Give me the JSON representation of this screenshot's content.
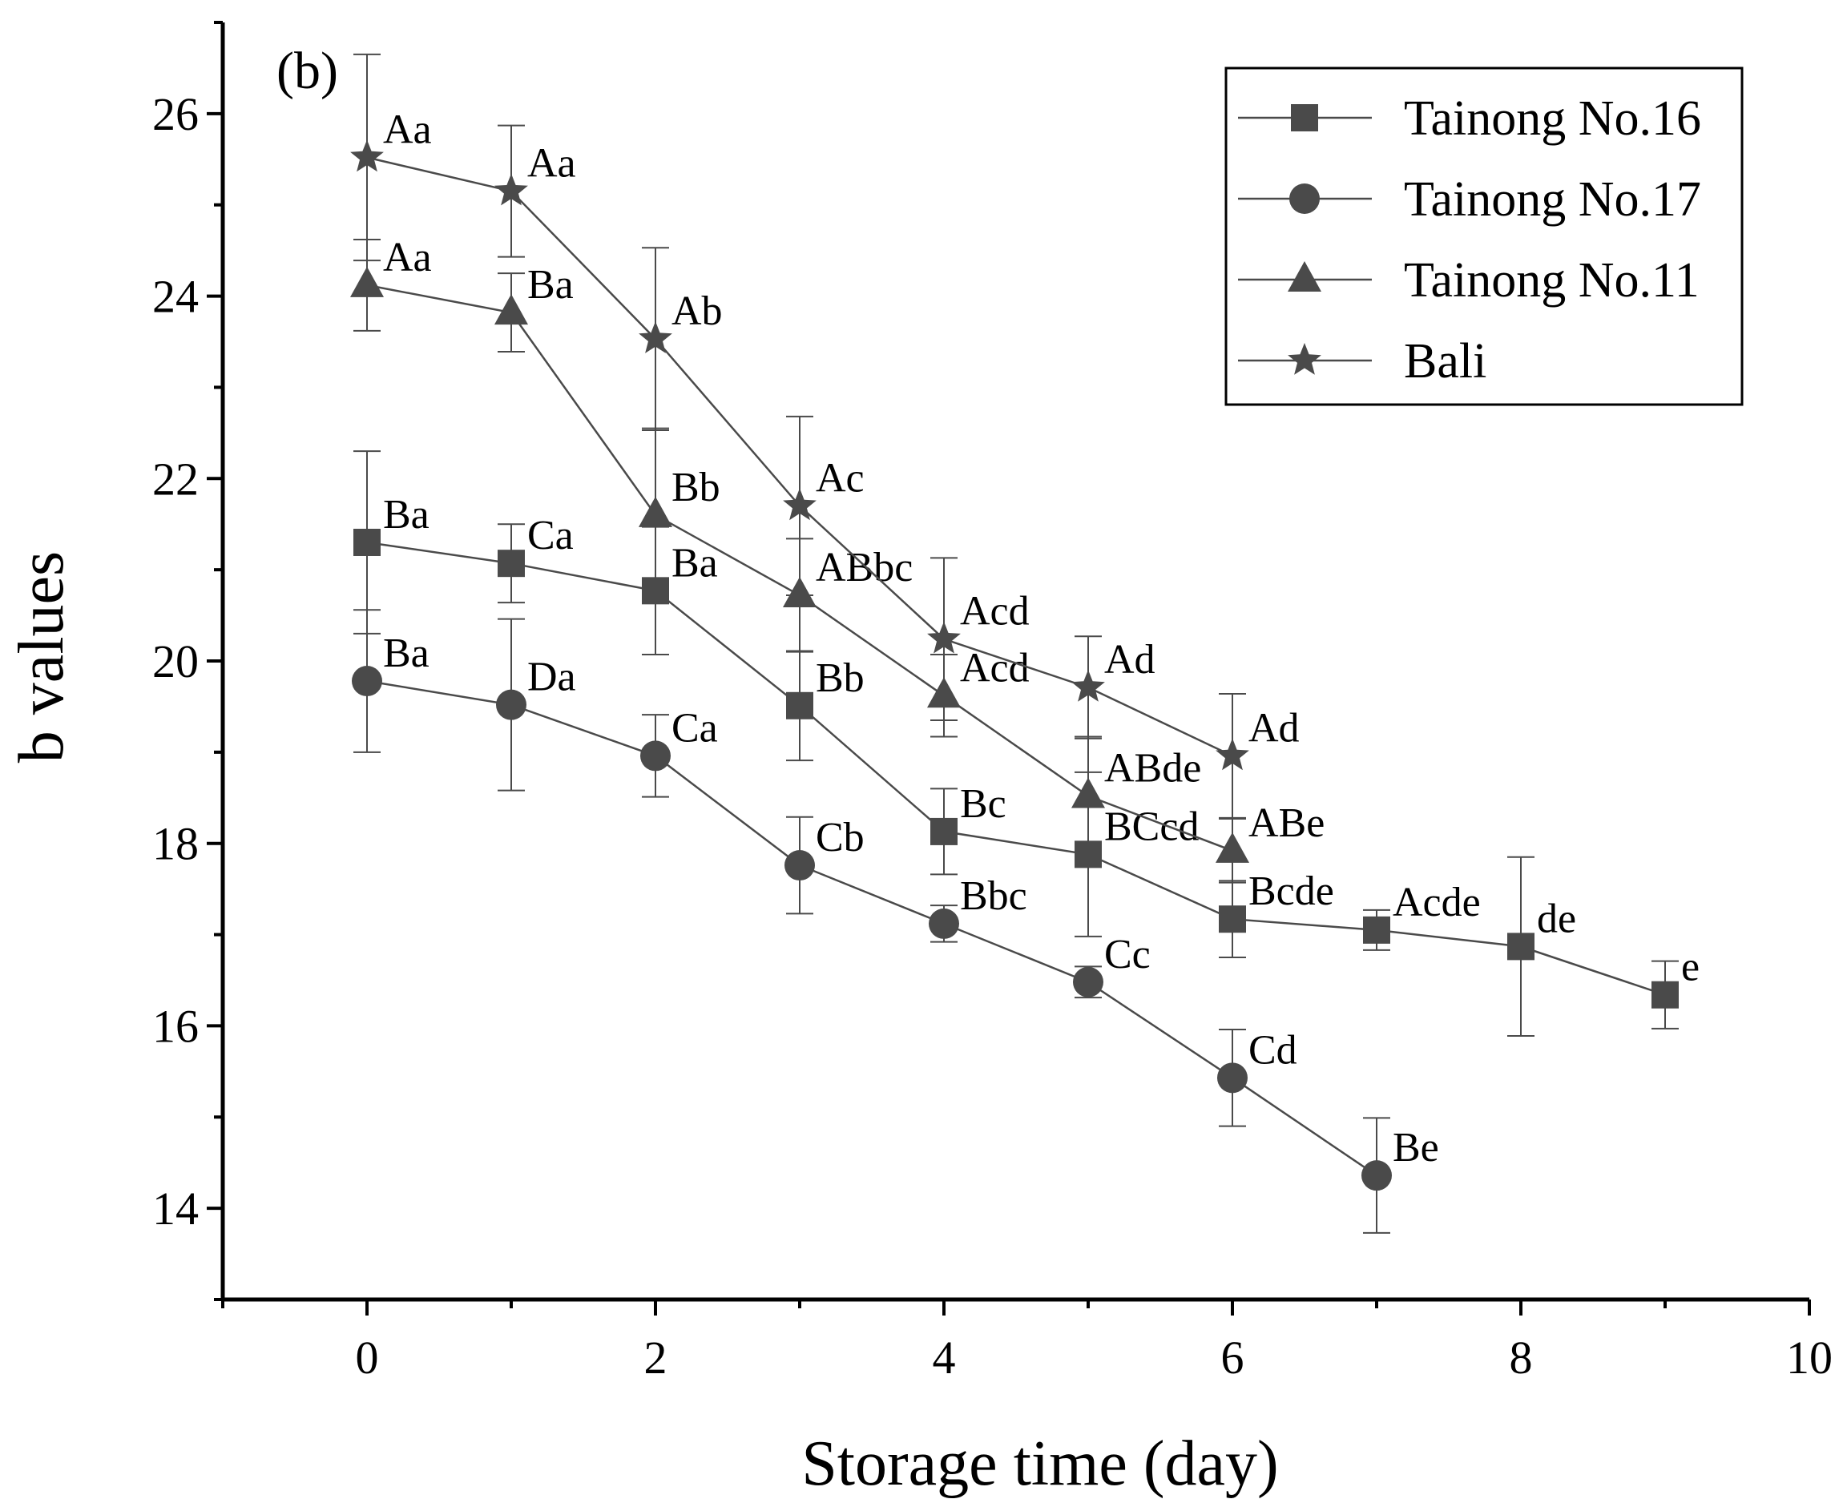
{
  "chart_data": {
    "type": "line",
    "panel_label": "(b)",
    "xlabel": "Storage time (day)",
    "ylabel": "b values",
    "xlim": [
      -1,
      10
    ],
    "ylim": [
      13,
      27
    ],
    "x_ticks": [
      0,
      2,
      4,
      6,
      8,
      10
    ],
    "y_ticks": [
      14,
      16,
      18,
      20,
      22,
      24,
      26
    ],
    "legend_position": "top-right",
    "grid": false,
    "colors": {
      "series": "#4a4a4a",
      "axis": "#000000"
    },
    "series": [
      {
        "name": "Tainong No.16",
        "marker": "square",
        "x": [
          0,
          1,
          2,
          3,
          4,
          5,
          6,
          7,
          8,
          9
        ],
        "values": [
          21.3,
          21.07,
          20.77,
          19.51,
          18.13,
          17.88,
          17.17,
          17.05,
          16.87,
          16.34
        ],
        "errors": [
          1.0,
          0.43,
          0.7,
          0.6,
          0.47,
          0.9,
          0.42,
          0.22,
          0.98,
          0.37
        ],
        "labels": [
          "Ba",
          "Ca",
          "Ba",
          "Bb",
          "Bc",
          "BCcd",
          "Bcde",
          "Acde",
          "de",
          "e"
        ]
      },
      {
        "name": "Tainong No.17",
        "marker": "circle",
        "x": [
          0,
          1,
          2,
          3,
          4,
          5,
          6,
          7
        ],
        "values": [
          19.78,
          19.52,
          18.96,
          17.76,
          17.12,
          16.48,
          15.43,
          14.36
        ],
        "errors": [
          0.78,
          0.94,
          0.45,
          0.53,
          0.2,
          0.17,
          0.53,
          0.63
        ],
        "labels": [
          "Ba",
          "Da",
          "Ca",
          "Cb",
          "Bbc",
          "Cc",
          "Cd",
          "Be"
        ]
      },
      {
        "name": "Tainong No.11",
        "marker": "triangle",
        "x": [
          0,
          1,
          2,
          3,
          4,
          5,
          6
        ],
        "values": [
          24.12,
          23.82,
          21.6,
          20.72,
          19.62,
          18.52,
          17.92
        ],
        "errors": [
          0.5,
          0.43,
          0.95,
          0.62,
          0.45,
          0.65,
          0.35
        ],
        "labels": [
          "Aa",
          "Ba",
          "Bb",
          "ABbc",
          "Acd",
          "ABde",
          "ABe"
        ]
      },
      {
        "name": "Bali",
        "marker": "star",
        "x": [
          0,
          1,
          2,
          3,
          4,
          5,
          6
        ],
        "values": [
          25.52,
          25.15,
          23.53,
          21.7,
          20.24,
          19.71,
          18.96
        ],
        "errors": [
          1.13,
          0.72,
          1.0,
          0.98,
          0.89,
          0.56,
          0.68
        ],
        "labels": [
          "Aa",
          "Aa",
          "Ab",
          "Ac",
          "Acd",
          "Ad",
          "Ad"
        ]
      }
    ]
  }
}
